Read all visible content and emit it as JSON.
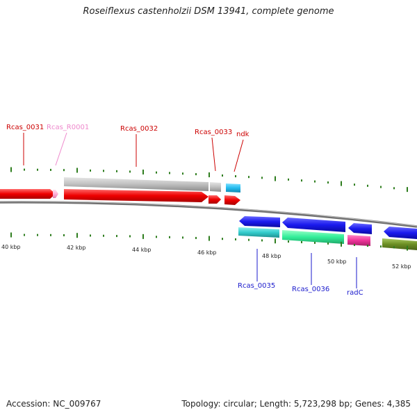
{
  "title": "Roseiflexus castenholzii DSM 13941, complete genome",
  "footer": {
    "accession": "Accession: NC_009767",
    "summary": "Topology: circular; Length: 5,723,298 bp; Genes: 4,385"
  },
  "scale": {
    "labels": [
      "40 kbp",
      "42 kbp",
      "44 kbp",
      "46 kbp",
      "48 kbp",
      "50 kbp",
      "52 kbp"
    ]
  },
  "genes": [
    {
      "id": "rcas-0031",
      "label": "Rcas_0031",
      "color": "#cc0000",
      "strand": "forward",
      "feature_color": "#ee0000"
    },
    {
      "id": "rcas-r0001",
      "label": "Rcas_R0001",
      "color": "#ee88cc",
      "strand": "forward",
      "feature_color": "#ff88cc"
    },
    {
      "id": "rcas-0032",
      "label": "Rcas_0032",
      "color": "#cc0000",
      "strand": "forward",
      "feature_color": "#ee0000"
    },
    {
      "id": "rcas-0033",
      "label": "Rcas_0033",
      "color": "#cc0000",
      "strand": "forward",
      "feature_color": "#ee0000"
    },
    {
      "id": "ndk",
      "label": "ndk",
      "color": "#cc0000",
      "strand": "forward",
      "feature_color": "#ee0000"
    },
    {
      "id": "rcas-0035",
      "label": "Rcas_0035",
      "color": "#1a1acc",
      "strand": "reverse",
      "feature_color": "#1a1aee"
    },
    {
      "id": "rcas-0036",
      "label": "Rcas_0036",
      "color": "#1a1acc",
      "strand": "reverse",
      "feature_color": "#1a1aee"
    },
    {
      "id": "radc",
      "label": "radC",
      "color": "#1a1acc",
      "strand": "reverse",
      "feature_color": "#1a1aee"
    }
  ],
  "colors": {
    "backbone": "#8a8a8a",
    "tick": "#2e7d1e",
    "cds_forward": "#ee0000",
    "cds_reverse": "#1a1aee",
    "rna": "#ffb0d8",
    "cog_gray": "#c0c0c0",
    "cog_cyan": "#22bbee",
    "cog_teal": "#33cccc",
    "cog_green": "#33ee99",
    "cog_magenta": "#ee3399",
    "cog_olive": "#6b8e23"
  }
}
